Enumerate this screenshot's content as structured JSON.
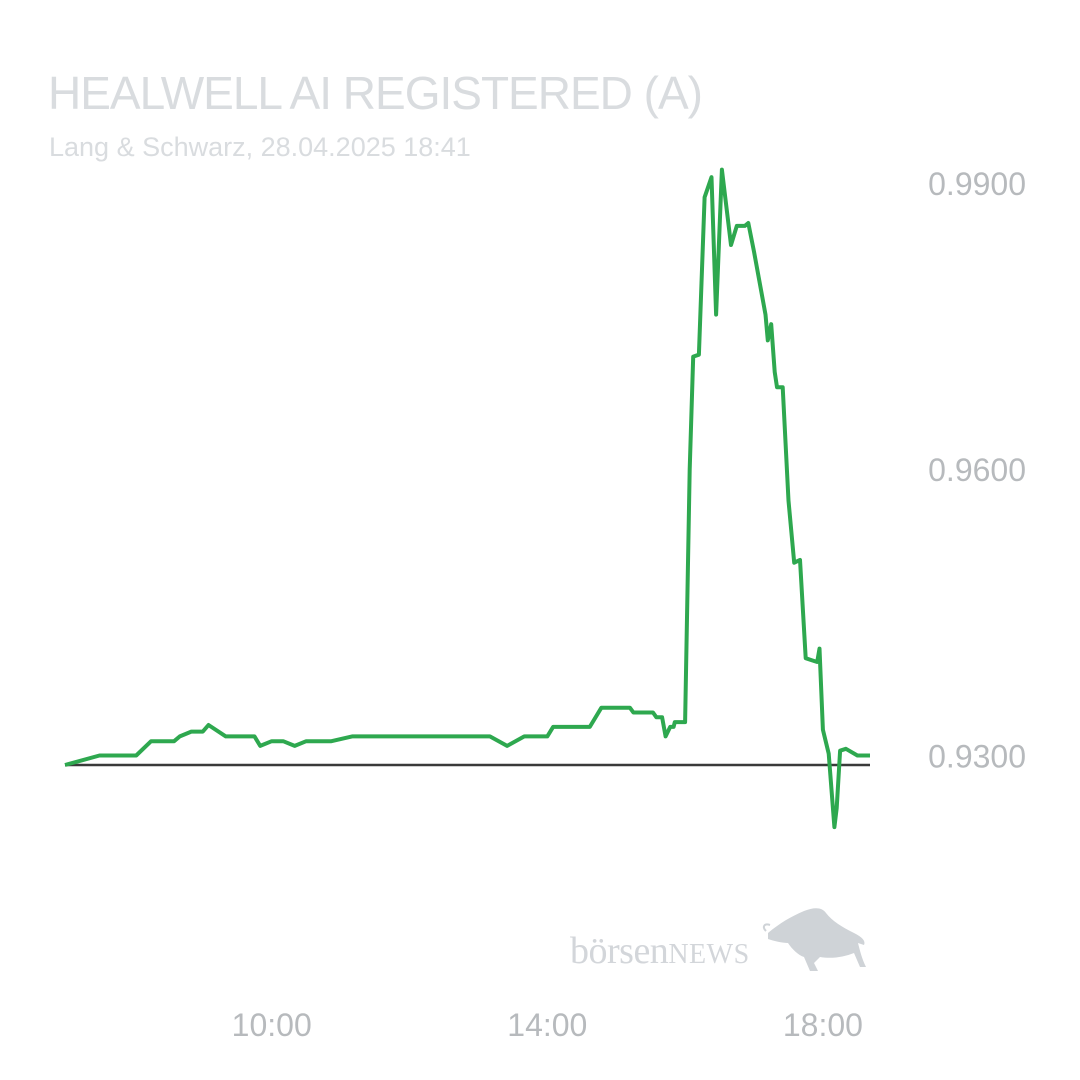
{
  "header": {
    "title": "HEALWELL AI REGISTERED (A)",
    "subtitle": "Lang & Schwarz, 28.04.2025 18:41"
  },
  "watermark": {
    "text_main": "börsen",
    "text_caps": "NEWS",
    "icon": "bull-icon"
  },
  "colors": {
    "line": "#2ea84f",
    "baseline": "#3a3a3a",
    "text_light": "#d9dcdf",
    "tick_text": "#b7babd"
  },
  "chart_data": {
    "type": "line",
    "title": "HEALWELL AI REGISTERED (A)",
    "xlabel": "",
    "ylabel": "",
    "x_ticks": [
      "10:00",
      "14:00",
      "18:00"
    ],
    "y_ticks": [
      "0.9900",
      "0.9600",
      "0.9300"
    ],
    "y_tick_values": [
      0.99,
      0.96,
      0.93
    ],
    "xlim": [
      "07:00",
      "18:41"
    ],
    "ylim": [
      0.918,
      0.9945
    ],
    "baseline": 0.929,
    "grid": false,
    "legend": "none",
    "series": [
      {
        "x": [
          "07:00",
          "07:30",
          "07:30",
          "08:02",
          "08:15",
          "08:35",
          "08:40",
          "08:50",
          "09:00",
          "09:05",
          "09:20",
          "09:27",
          "09:45",
          "09:50",
          "10:00",
          "10:10",
          "10:20",
          "10:30",
          "10:35",
          "10:52",
          "11:10",
          "11:45",
          "12:10",
          "12:40",
          "13:00",
          "13:10",
          "13:25",
          "13:40",
          "13:55",
          "14:00",
          "14:05",
          "14:15",
          "14:37",
          "14:47",
          "15:00",
          "15:10",
          "15:12",
          "15:15",
          "15:20",
          "15:22",
          "15:32",
          "15:35",
          "15:40",
          "15:43",
          "15:47",
          "15:50",
          "15:51",
          "15:53",
          "15:57",
          "16:00",
          "16:04",
          "16:07",
          "16:12",
          "16:17",
          "16:23",
          "16:27",
          "16:32",
          "16:40",
          "16:45",
          "16:52",
          "16:55",
          "17:00",
          "17:10",
          "17:12",
          "17:15",
          "17:18",
          "17:20",
          "17:25",
          "17:30",
          "17:35",
          "17:40",
          "17:45",
          "17:50",
          "17:55",
          "17:57",
          "18:00",
          "18:05",
          "18:10",
          "18:12",
          "18:15",
          "18:20",
          "18:30",
          "18:41"
        ],
        "values": [
          0.929,
          0.93,
          0.93,
          0.93,
          0.9315,
          0.9315,
          0.932,
          0.9325,
          0.9325,
          0.9332,
          0.932,
          0.932,
          0.932,
          0.931,
          0.9315,
          0.9315,
          0.931,
          0.9315,
          0.9315,
          0.9315,
          0.932,
          0.932,
          0.932,
          0.932,
          0.932,
          0.932,
          0.931,
          0.932,
          0.932,
          0.932,
          0.933,
          0.933,
          0.933,
          0.935,
          0.935,
          0.935,
          0.935,
          0.9345,
          0.9345,
          0.9345,
          0.9345,
          0.934,
          0.934,
          0.932,
          0.933,
          0.933,
          0.9335,
          0.9335,
          0.9335,
          0.9335,
          0.96,
          0.9718,
          0.972,
          0.9885,
          0.9906,
          0.9762,
          0.9914,
          0.9835,
          0.9855,
          0.9855,
          0.9858,
          0.9828,
          0.9762,
          0.9735,
          0.9752,
          0.9702,
          0.9686,
          0.9686,
          0.9567,
          0.9502,
          0.9505,
          0.9402,
          0.94,
          0.9398,
          0.9412,
          0.9327,
          0.9302,
          0.9225,
          0.9245,
          0.9305,
          0.9307,
          0.93,
          0.93
        ]
      }
    ]
  }
}
